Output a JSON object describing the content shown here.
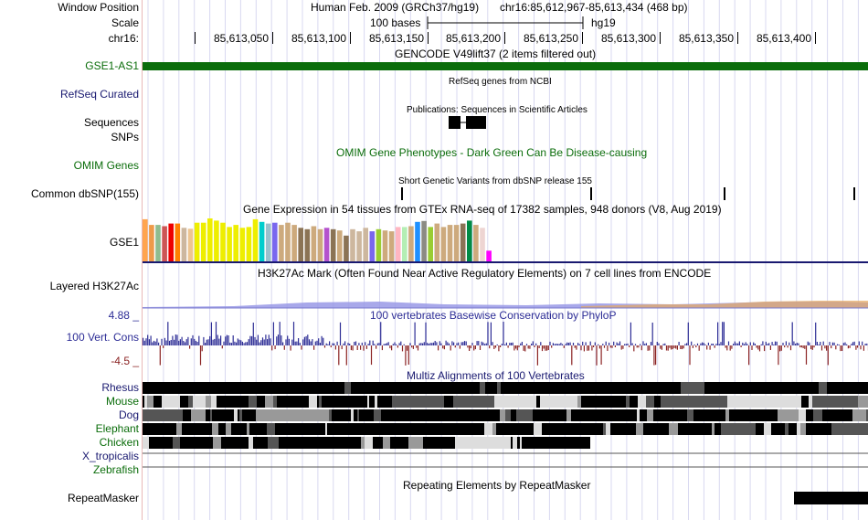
{
  "header": {
    "window_position_label": "Window Position",
    "scale_label": "Scale",
    "chrom_label": "chr16:",
    "assembly_text": "Human Feb. 2009 (GRCh37/hg19)",
    "position_text": "chr16:85,612,967-85,613,434 (468 bp)",
    "scale_text": "100 bases",
    "db_text": "hg19",
    "ruler_ticks": [
      "85,613,050",
      "85,613,100",
      "85,613,150",
      "85,613,200",
      "85,613,250",
      "85,613,300",
      "85,613,350",
      "85,613,400"
    ]
  },
  "tracks": {
    "gencode": {
      "title": "GENCODE V49lift37 (2 items filtered out)",
      "item_label": "GSE1-AS1",
      "color": "#0b6d0b"
    },
    "refseq": {
      "label": "RefSeq Curated",
      "title": "RefSeq genes from NCBI"
    },
    "publications": {
      "label": "Sequences",
      "title": "Publications: Sequences in Scientific Articles"
    },
    "snps_label": "SNPs",
    "omim": {
      "label": "OMIM Genes",
      "title": "OMIM Gene Phenotypes - Dark Green Can Be Disease-causing",
      "color": "#0b6d0b"
    },
    "dbsnp": {
      "label": "Common dbSNP(155)",
      "title": "Short Genetic Variants from dbSNP release 155"
    },
    "gtex": {
      "label": "GSE1",
      "title": "Gene Expression in 54 tissues from GTEx RNA-seq of 17382 samples, 948 donors (V8, Aug 2019)",
      "bar_heights": [
        0.98,
        0.85,
        0.85,
        0.82,
        0.88,
        0.88,
        0.78,
        0.76,
        0.9,
        0.9,
        1.0,
        0.95,
        0.9,
        0.8,
        0.85,
        0.78,
        0.8,
        0.98,
        0.92,
        0.88,
        0.9,
        0.85,
        0.9,
        0.85,
        0.78,
        0.75,
        0.82,
        0.75,
        0.78,
        0.75,
        0.72,
        0.6,
        0.75,
        0.7,
        0.78,
        0.7,
        0.75,
        0.72,
        0.7,
        0.8,
        0.8,
        0.82,
        0.92,
        0.94,
        0.8,
        0.88,
        0.8,
        0.85,
        0.85,
        0.88,
        0.95,
        0.85,
        0.78,
        0.25
      ],
      "bar_colors": [
        "#ffa54f",
        "#ee9a49",
        "#8fbc8f",
        "#cd5555",
        "#ee0000",
        "#ff7f00",
        "#cdb79e",
        "#eec591",
        "#eeee00",
        "#eeee00",
        "#eeee00",
        "#eeee00",
        "#eeee00",
        "#eeee00",
        "#eeee00",
        "#eeee00",
        "#eeee00",
        "#eeee00",
        "#00cdcd",
        "#9ac0cd",
        "#7a67ee",
        "#cdaa7d",
        "#cdaa7d",
        "#cdaa7d",
        "#8b7355",
        "#8b7355",
        "#cdaa7d",
        "#cdaa7d",
        "#b452cd",
        "#8b7355",
        "#cdaa7d",
        "#8b7355",
        "#cdb79e",
        "#cdb79e",
        "#cdb79e",
        "#7a67ee",
        "#9acd32",
        "#cdaa7d",
        "#cdaa7d",
        "#ffb6c1",
        "#b4eeb4",
        "#cdaa7d",
        "#1e90ff",
        "#8b8b83",
        "#9acd32",
        "#cdaa7d",
        "#cdaa7d",
        "#cdaa7d",
        "#cdaa7d",
        "#8b7355",
        "#008b45",
        "#cdaa7d",
        "#eed5d2",
        "#ff00ff"
      ]
    },
    "h3k27ac": {
      "label": "Layered H3K27Ac",
      "title": "H3K27Ac Mark (Often Found Near Active Regulatory Elements) on 7 cell lines from ENCODE"
    },
    "conservation": {
      "label": "100 Vert. Cons",
      "title": "100 vertebrates Basewise Conservation by PhyloP",
      "max_label": "4.88 _",
      "min_label": "-4.5 _",
      "pos_color": "#2d2d96",
      "neg_color": "#8b2323"
    },
    "multiz": {
      "title": "Multiz Alignments of 100 Vertebrates",
      "species": [
        {
          "name": "Rhesus",
          "color": "#191970"
        },
        {
          "name": "Mouse",
          "color": "#0b6d0b"
        },
        {
          "name": "Dog",
          "color": "#191970"
        },
        {
          "name": "Elephant",
          "color": "#0b6d0b"
        },
        {
          "name": "Chicken",
          "color": "#0b6d0b"
        },
        {
          "name": "X_tropicalis",
          "color": "#191970"
        },
        {
          "name": "Zebrafish",
          "color": "#0b6d0b"
        }
      ]
    },
    "repeatmasker": {
      "label": "RepeatMasker",
      "title": "Repeating Elements by RepeatMasker"
    }
  },
  "colors": {
    "gridline": "#d8d8f0",
    "left_edge": "#e8b9b9",
    "navy": "#191970",
    "green": "#0b6d0b"
  }
}
